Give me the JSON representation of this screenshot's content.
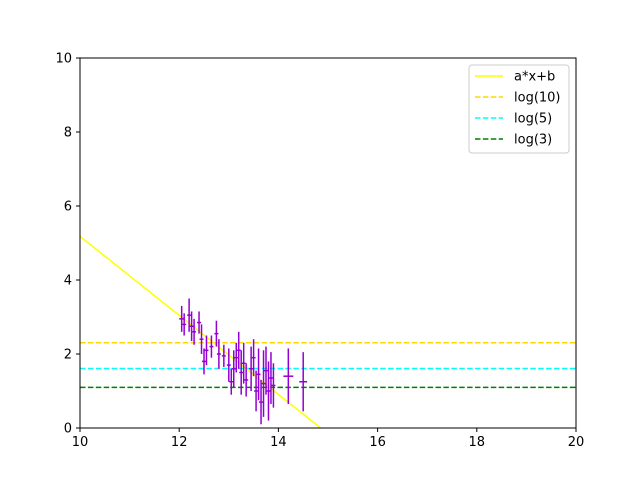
{
  "chart_data": {
    "type": "scatter",
    "xlim": [
      10,
      20
    ],
    "ylim": [
      0,
      10
    ],
    "x_ticks": [
      "10",
      "12",
      "14",
      "16",
      "18",
      "20"
    ],
    "y_ticks": [
      "0",
      "2",
      "4",
      "6",
      "8",
      "10"
    ],
    "grid": false,
    "legend_position": "top-right",
    "legend": [
      "a*x+b",
      "log(10)",
      "log(5)",
      "log(3)"
    ],
    "fit_line": {
      "name": "a*x+b",
      "x": [
        10,
        14.85
      ],
      "y": [
        5.18,
        0.0
      ],
      "color": "#ffff00",
      "style": "solid"
    },
    "hlines": [
      {
        "name": "log(10)",
        "y": 2.303,
        "color": "#ffd700",
        "style": "dashed"
      },
      {
        "name": "log(5)",
        "y": 1.609,
        "color": "#00ffff",
        "style": "dashed"
      },
      {
        "name": "log(3)",
        "y": 1.099,
        "color": "#008000",
        "style": "dashed"
      }
    ],
    "errorbar_series": {
      "color": "#9400d3",
      "points": [
        {
          "x": 12.05,
          "y": 2.95,
          "yerr": 0.35,
          "xerr": 0.05
        },
        {
          "x": 12.1,
          "y": 2.8,
          "yerr": 0.3,
          "xerr": 0.04
        },
        {
          "x": 12.2,
          "y": 3.05,
          "yerr": 0.45,
          "xerr": 0.04
        },
        {
          "x": 12.25,
          "y": 2.75,
          "yerr": 0.4,
          "xerr": 0.05
        },
        {
          "x": 12.3,
          "y": 2.6,
          "yerr": 0.35,
          "xerr": 0.04
        },
        {
          "x": 12.4,
          "y": 2.85,
          "yerr": 0.3,
          "xerr": 0.04
        },
        {
          "x": 12.45,
          "y": 2.4,
          "yerr": 0.4,
          "xerr": 0.04
        },
        {
          "x": 12.5,
          "y": 1.8,
          "yerr": 0.35,
          "xerr": 0.04
        },
        {
          "x": 12.55,
          "y": 2.1,
          "yerr": 0.4,
          "xerr": 0.04
        },
        {
          "x": 12.65,
          "y": 2.2,
          "yerr": 0.3,
          "xerr": 0.04
        },
        {
          "x": 12.75,
          "y": 2.55,
          "yerr": 0.35,
          "xerr": 0.04
        },
        {
          "x": 12.8,
          "y": 2.0,
          "yerr": 0.4,
          "xerr": 0.04
        },
        {
          "x": 12.9,
          "y": 1.95,
          "yerr": 0.3,
          "xerr": 0.04
        },
        {
          "x": 13.0,
          "y": 1.7,
          "yerr": 0.45,
          "xerr": 0.04
        },
        {
          "x": 13.05,
          "y": 1.25,
          "yerr": 0.35,
          "xerr": 0.04
        },
        {
          "x": 13.1,
          "y": 1.6,
          "yerr": 0.5,
          "xerr": 0.04
        },
        {
          "x": 13.15,
          "y": 1.9,
          "yerr": 0.4,
          "xerr": 0.04
        },
        {
          "x": 13.2,
          "y": 2.1,
          "yerr": 0.5,
          "xerr": 0.04
        },
        {
          "x": 13.25,
          "y": 1.5,
          "yerr": 0.6,
          "xerr": 0.04
        },
        {
          "x": 13.3,
          "y": 1.75,
          "yerr": 0.55,
          "xerr": 0.04
        },
        {
          "x": 13.35,
          "y": 1.3,
          "yerr": 0.45,
          "xerr": 0.04
        },
        {
          "x": 13.45,
          "y": 1.6,
          "yerr": 0.6,
          "xerr": 0.04
        },
        {
          "x": 13.5,
          "y": 1.9,
          "yerr": 0.5,
          "xerr": 0.04
        },
        {
          "x": 13.55,
          "y": 1.0,
          "yerr": 0.55,
          "xerr": 0.04
        },
        {
          "x": 13.6,
          "y": 1.45,
          "yerr": 0.7,
          "xerr": 0.04
        },
        {
          "x": 13.65,
          "y": 0.7,
          "yerr": 0.6,
          "xerr": 0.04
        },
        {
          "x": 13.7,
          "y": 1.2,
          "yerr": 0.9,
          "xerr": 0.04
        },
        {
          "x": 13.75,
          "y": 1.55,
          "yerr": 0.65,
          "xerr": 0.04
        },
        {
          "x": 13.8,
          "y": 1.0,
          "yerr": 0.8,
          "xerr": 0.04
        },
        {
          "x": 13.85,
          "y": 1.35,
          "yerr": 0.7,
          "xerr": 0.04
        },
        {
          "x": 13.9,
          "y": 1.15,
          "yerr": 0.6,
          "xerr": 0.04
        },
        {
          "x": 14.2,
          "y": 1.4,
          "yerr": 0.75,
          "xerr": 0.1
        },
        {
          "x": 14.5,
          "y": 1.25,
          "yerr": 0.8,
          "xerr": 0.08
        }
      ]
    }
  }
}
